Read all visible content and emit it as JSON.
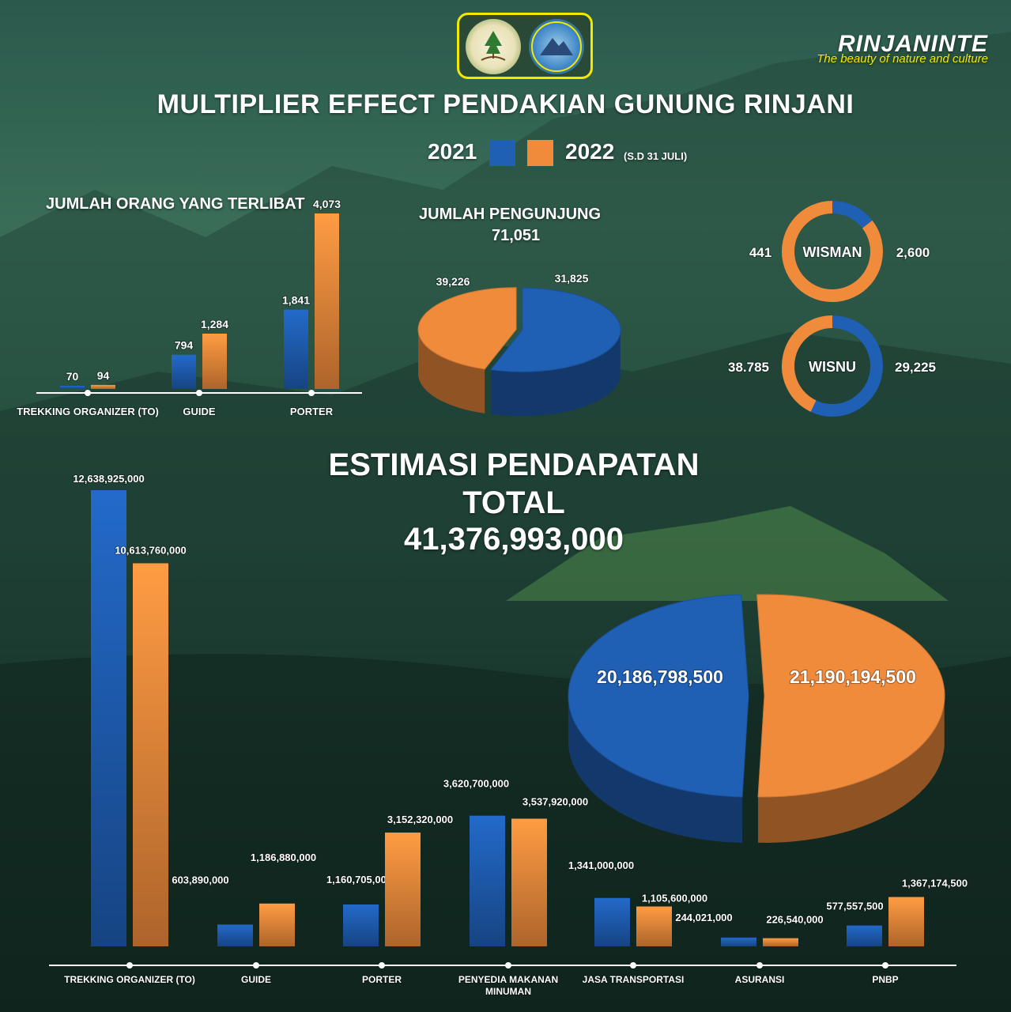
{
  "header": {
    "title": "MULTIPLIER EFFECT PENDAKIAN GUNUNG RINJANI",
    "legend": {
      "year_2021": "2021",
      "year_2022": "2022",
      "note_2022": "(S.D 31 JULI)"
    },
    "logo_left_icon": "tree-roots-emblem-icon",
    "logo_right_text": "TAMAN NASIONAL GUNUNG RINJANI",
    "brand": {
      "name": "RINJANINTE",
      "tagline": "The beauty of nature and culture"
    }
  },
  "colors": {
    "series_2021": "#1f5fb4",
    "series_2022": "#f08b3c",
    "logo_border": "#f3e800"
  },
  "sections": {
    "people": "JUMLAH ORANG YANG TERLIBAT",
    "visitors_title": "JUMLAH PENGUNJUNG",
    "visitors_total": "71,051",
    "income_title_1": "ESTIMASI PENDAPATAN",
    "income_title_2": "TOTAL",
    "income_total": "41,376,993,000"
  },
  "chart_data": [
    {
      "type": "bar",
      "title": "JUMLAH ORANG YANG TERLIBAT",
      "categories": [
        "TREKKING ORGANIZER (TO)",
        "GUIDE",
        "PORTER"
      ],
      "series": [
        {
          "name": "2021",
          "values": [
            70,
            794,
            1841
          ],
          "labels": [
            "70",
            "794",
            "1,841"
          ]
        },
        {
          "name": "2022",
          "values": [
            94,
            1284,
            4073
          ],
          "labels": [
            "94",
            "1,284",
            "4,073"
          ]
        }
      ]
    },
    {
      "type": "pie",
      "title": "JUMLAH PENGUNJUNG",
      "total": "71,051",
      "slices": [
        {
          "name": "2021",
          "value": 39226,
          "label": "39,226"
        },
        {
          "name": "2022",
          "value": 31825,
          "label": "31,825"
        }
      ]
    },
    {
      "type": "pie",
      "title": "WISMAN",
      "slices": [
        {
          "name": "2021",
          "value": 441,
          "label": "441"
        },
        {
          "name": "2022",
          "value": 2600,
          "label": "2,600"
        }
      ]
    },
    {
      "type": "pie",
      "title": "WISNU",
      "slices": [
        {
          "name": "2021",
          "value": 38785,
          "label": "38.785"
        },
        {
          "name": "2022",
          "value": 29225,
          "label": "29,225"
        }
      ]
    },
    {
      "type": "bar",
      "title": "ESTIMASI PENDAPATAN",
      "categories": [
        "TREKKING ORGANIZER (TO)",
        "GUIDE",
        "PORTER",
        "PENYEDIA MAKANAN MINUMAN",
        "JASA TRANSPORTASI",
        "ASURANSI",
        "PNBP"
      ],
      "series": [
        {
          "name": "2021",
          "values": [
            12638925000,
            603890000,
            1160705000,
            3620700000,
            1341000000,
            244021000,
            577557500
          ],
          "labels": [
            "12,638,925,000",
            "603,890,000",
            "1,160,705,000",
            "3,620,700,000",
            "1,341,000,000",
            "244,021,000",
            "577,557,500"
          ]
        },
        {
          "name": "2022",
          "values": [
            10613760000,
            1186880000,
            3152320000,
            3537920000,
            1105600000,
            226540000,
            1367174500
          ],
          "labels": [
            "10,613,760,000",
            "1,186,880,000",
            "3,152,320,000",
            "3,537,920,000",
            "1,105,600,000",
            "226,540,000",
            "1,367,174,500"
          ]
        }
      ]
    },
    {
      "type": "pie",
      "title": "ESTIMASI PENDAPATAN TOTAL",
      "total": "41,376,993,000",
      "slices": [
        {
          "name": "2021",
          "value": 20186798500,
          "label": "20,186,798,500"
        },
        {
          "name": "2022",
          "value": 21190194500,
          "label": "21,190,194,500"
        }
      ]
    }
  ]
}
